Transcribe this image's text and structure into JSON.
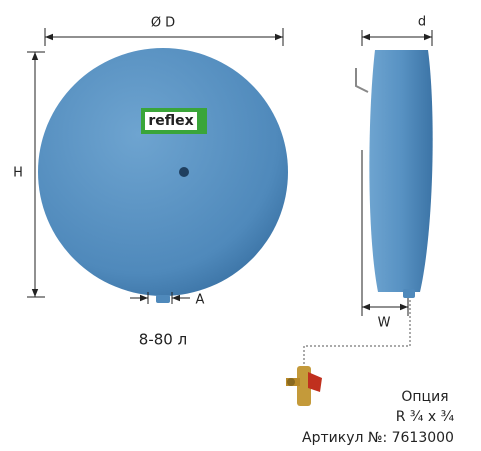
{
  "dimensions": {
    "diameter": "Ø D",
    "depth": "d",
    "height": "H",
    "connection": "A",
    "offset": "W"
  },
  "logo": "reflex",
  "volume": "8-80 л",
  "option": {
    "title": "Опция",
    "thread": "R ¾ x ¾",
    "article": "Артикул №: 7613000"
  }
}
